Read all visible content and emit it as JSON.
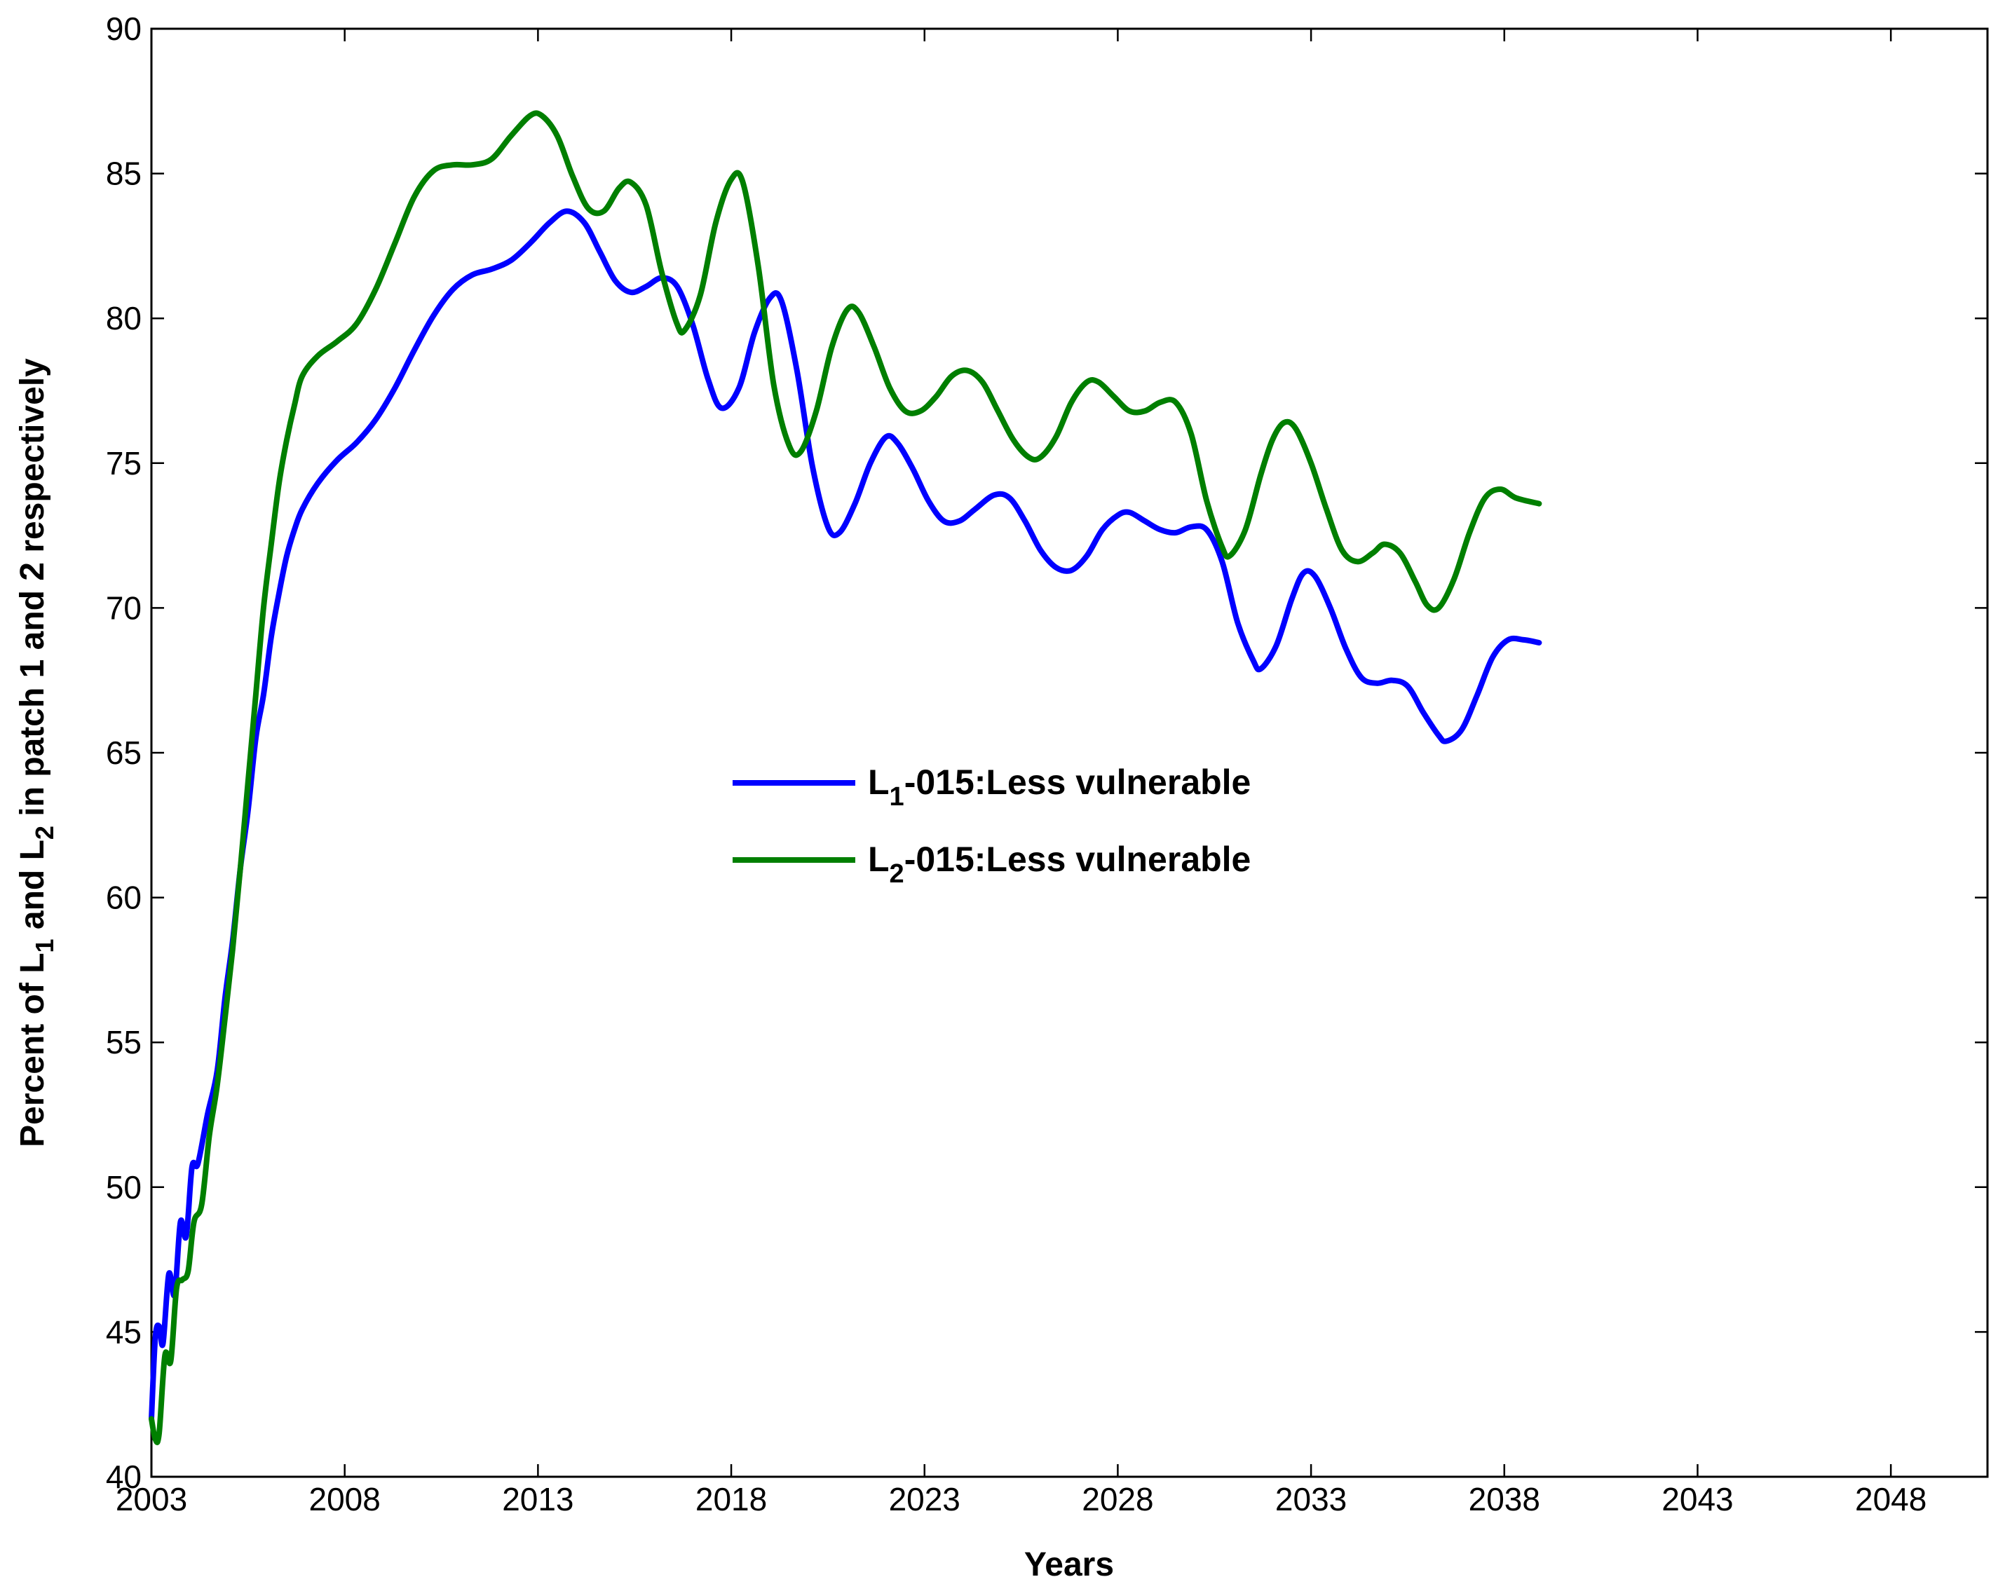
{
  "chart_data": {
    "type": "line",
    "xlabel": "Years",
    "ylabel_parts": [
      "Percent of L",
      "1",
      " and L",
      "2",
      " in patch 1 and 2 respectively"
    ],
    "xlim": [
      2003,
      2050.5
    ],
    "ylim": [
      40,
      90
    ],
    "xticks": [
      2003,
      2008,
      2013,
      2018,
      2023,
      2028,
      2033,
      2038,
      2043,
      2048
    ],
    "yticks": [
      40,
      45,
      50,
      55,
      60,
      65,
      70,
      75,
      80,
      85,
      90
    ],
    "grid": false,
    "legend_position": "center",
    "series": [
      {
        "name": "L1-015:Less vulnerable",
        "label_parts": [
          "L",
          "1",
          "-015:Less vulnerable"
        ],
        "color": "#0000ff",
        "points": [
          [
            2003.0,
            42.0
          ],
          [
            2003.1,
            44.8
          ],
          [
            2003.2,
            45.2
          ],
          [
            2003.3,
            44.6
          ],
          [
            2003.45,
            47.0
          ],
          [
            2003.6,
            46.3
          ],
          [
            2003.75,
            48.8
          ],
          [
            2003.9,
            48.3
          ],
          [
            2004.05,
            50.7
          ],
          [
            2004.2,
            50.8
          ],
          [
            2004.45,
            52.5
          ],
          [
            2004.7,
            54.0
          ],
          [
            2004.9,
            56.5
          ],
          [
            2005.1,
            58.5
          ],
          [
            2005.3,
            61.0
          ],
          [
            2005.5,
            63.0
          ],
          [
            2005.7,
            65.5
          ],
          [
            2005.9,
            67.0
          ],
          [
            2006.1,
            69.0
          ],
          [
            2006.3,
            70.5
          ],
          [
            2006.5,
            71.8
          ],
          [
            2006.7,
            72.7
          ],
          [
            2006.9,
            73.4
          ],
          [
            2007.3,
            74.3
          ],
          [
            2007.8,
            75.1
          ],
          [
            2008.3,
            75.7
          ],
          [
            2008.8,
            76.5
          ],
          [
            2009.3,
            77.6
          ],
          [
            2009.8,
            78.9
          ],
          [
            2010.3,
            80.1
          ],
          [
            2010.8,
            81.0
          ],
          [
            2011.3,
            81.5
          ],
          [
            2011.8,
            81.7
          ],
          [
            2012.3,
            82.0
          ],
          [
            2012.8,
            82.6
          ],
          [
            2013.3,
            83.3
          ],
          [
            2013.75,
            83.7
          ],
          [
            2014.2,
            83.3
          ],
          [
            2014.6,
            82.3
          ],
          [
            2015.0,
            81.3
          ],
          [
            2015.4,
            80.9
          ],
          [
            2015.8,
            81.1
          ],
          [
            2016.2,
            81.4
          ],
          [
            2016.6,
            81.1
          ],
          [
            2017.0,
            79.8
          ],
          [
            2017.4,
            77.9
          ],
          [
            2017.75,
            76.9
          ],
          [
            2018.2,
            77.6
          ],
          [
            2018.6,
            79.5
          ],
          [
            2019.0,
            80.7
          ],
          [
            2019.3,
            80.6
          ],
          [
            2019.7,
            78.2
          ],
          [
            2020.1,
            74.9
          ],
          [
            2020.5,
            72.8
          ],
          [
            2020.8,
            72.6
          ],
          [
            2021.2,
            73.6
          ],
          [
            2021.6,
            75.0
          ],
          [
            2022.0,
            75.9
          ],
          [
            2022.3,
            75.7
          ],
          [
            2022.7,
            74.8
          ],
          [
            2023.1,
            73.7
          ],
          [
            2023.5,
            73.0
          ],
          [
            2023.9,
            73.0
          ],
          [
            2024.3,
            73.4
          ],
          [
            2024.8,
            73.9
          ],
          [
            2025.2,
            73.8
          ],
          [
            2025.6,
            73.0
          ],
          [
            2026.0,
            72.0
          ],
          [
            2026.4,
            71.4
          ],
          [
            2026.8,
            71.3
          ],
          [
            2027.2,
            71.8
          ],
          [
            2027.6,
            72.7
          ],
          [
            2028.0,
            73.2
          ],
          [
            2028.3,
            73.3
          ],
          [
            2028.7,
            73.0
          ],
          [
            2029.1,
            72.7
          ],
          [
            2029.5,
            72.6
          ],
          [
            2029.9,
            72.8
          ],
          [
            2030.3,
            72.7
          ],
          [
            2030.7,
            71.6
          ],
          [
            2031.1,
            69.5
          ],
          [
            2031.5,
            68.2
          ],
          [
            2031.7,
            67.9
          ],
          [
            2032.1,
            68.7
          ],
          [
            2032.5,
            70.3
          ],
          [
            2032.8,
            71.2
          ],
          [
            2033.1,
            71.1
          ],
          [
            2033.5,
            70.0
          ],
          [
            2033.9,
            68.6
          ],
          [
            2034.3,
            67.6
          ],
          [
            2034.7,
            67.4
          ],
          [
            2035.1,
            67.5
          ],
          [
            2035.5,
            67.3
          ],
          [
            2035.9,
            66.4
          ],
          [
            2036.3,
            65.6
          ],
          [
            2036.5,
            65.4
          ],
          [
            2036.9,
            65.8
          ],
          [
            2037.3,
            67.0
          ],
          [
            2037.7,
            68.3
          ],
          [
            2038.1,
            68.9
          ],
          [
            2038.5,
            68.9
          ],
          [
            2038.9,
            68.8
          ]
        ]
      },
      {
        "name": "L2-015:Less vulnerable",
        "label_parts": [
          "L",
          "2",
          "-015:Less vulnerable"
        ],
        "color": "#007f00",
        "points": [
          [
            2003.0,
            42.0
          ],
          [
            2003.1,
            41.3
          ],
          [
            2003.2,
            41.5
          ],
          [
            2003.35,
            44.2
          ],
          [
            2003.5,
            44.0
          ],
          [
            2003.65,
            46.5
          ],
          [
            2003.8,
            46.8
          ],
          [
            2003.95,
            47.1
          ],
          [
            2004.1,
            48.8
          ],
          [
            2004.3,
            49.4
          ],
          [
            2004.5,
            51.8
          ],
          [
            2004.7,
            53.5
          ],
          [
            2004.9,
            55.8
          ],
          [
            2005.1,
            58.2
          ],
          [
            2005.3,
            61.0
          ],
          [
            2005.5,
            64.0
          ],
          [
            2005.7,
            67.0
          ],
          [
            2005.9,
            70.0
          ],
          [
            2006.1,
            72.2
          ],
          [
            2006.3,
            74.3
          ],
          [
            2006.5,
            75.8
          ],
          [
            2006.7,
            77.0
          ],
          [
            2006.9,
            78.0
          ],
          [
            2007.3,
            78.7
          ],
          [
            2007.8,
            79.2
          ],
          [
            2008.3,
            79.8
          ],
          [
            2008.8,
            81.0
          ],
          [
            2009.3,
            82.6
          ],
          [
            2009.8,
            84.2
          ],
          [
            2010.3,
            85.1
          ],
          [
            2010.8,
            85.3
          ],
          [
            2011.3,
            85.3
          ],
          [
            2011.8,
            85.5
          ],
          [
            2012.3,
            86.3
          ],
          [
            2012.8,
            87.0
          ],
          [
            2013.1,
            87.0
          ],
          [
            2013.5,
            86.3
          ],
          [
            2013.9,
            84.9
          ],
          [
            2014.3,
            83.8
          ],
          [
            2014.7,
            83.7
          ],
          [
            2015.1,
            84.5
          ],
          [
            2015.4,
            84.7
          ],
          [
            2015.8,
            83.9
          ],
          [
            2016.2,
            81.6
          ],
          [
            2016.6,
            79.8
          ],
          [
            2016.8,
            79.6
          ],
          [
            2017.2,
            80.8
          ],
          [
            2017.6,
            83.3
          ],
          [
            2018.0,
            84.8
          ],
          [
            2018.3,
            84.7
          ],
          [
            2018.7,
            81.8
          ],
          [
            2019.1,
            77.7
          ],
          [
            2019.5,
            75.6
          ],
          [
            2019.8,
            75.4
          ],
          [
            2020.2,
            76.8
          ],
          [
            2020.6,
            79.0
          ],
          [
            2021.0,
            80.3
          ],
          [
            2021.3,
            80.2
          ],
          [
            2021.7,
            79.0
          ],
          [
            2022.1,
            77.6
          ],
          [
            2022.5,
            76.8
          ],
          [
            2022.9,
            76.8
          ],
          [
            2023.3,
            77.3
          ],
          [
            2023.7,
            78.0
          ],
          [
            2024.1,
            78.2
          ],
          [
            2024.5,
            77.8
          ],
          [
            2024.9,
            76.8
          ],
          [
            2025.3,
            75.8
          ],
          [
            2025.7,
            75.2
          ],
          [
            2026.0,
            75.2
          ],
          [
            2026.4,
            75.9
          ],
          [
            2026.8,
            77.1
          ],
          [
            2027.2,
            77.8
          ],
          [
            2027.5,
            77.8
          ],
          [
            2027.9,
            77.3
          ],
          [
            2028.3,
            76.8
          ],
          [
            2028.7,
            76.8
          ],
          [
            2029.1,
            77.1
          ],
          [
            2029.5,
            77.1
          ],
          [
            2029.9,
            76.0
          ],
          [
            2030.3,
            73.7
          ],
          [
            2030.7,
            72.1
          ],
          [
            2030.9,
            71.8
          ],
          [
            2031.3,
            72.7
          ],
          [
            2031.7,
            74.6
          ],
          [
            2032.0,
            75.8
          ],
          [
            2032.3,
            76.4
          ],
          [
            2032.6,
            76.2
          ],
          [
            2033.0,
            75.0
          ],
          [
            2033.4,
            73.4
          ],
          [
            2033.8,
            72.0
          ],
          [
            2034.2,
            71.6
          ],
          [
            2034.6,
            71.9
          ],
          [
            2034.9,
            72.2
          ],
          [
            2035.3,
            71.9
          ],
          [
            2035.7,
            70.9
          ],
          [
            2036.0,
            70.1
          ],
          [
            2036.3,
            70.0
          ],
          [
            2036.7,
            71.0
          ],
          [
            2037.1,
            72.6
          ],
          [
            2037.5,
            73.8
          ],
          [
            2037.9,
            74.1
          ],
          [
            2038.3,
            73.8
          ],
          [
            2038.9,
            73.6
          ]
        ]
      }
    ]
  }
}
